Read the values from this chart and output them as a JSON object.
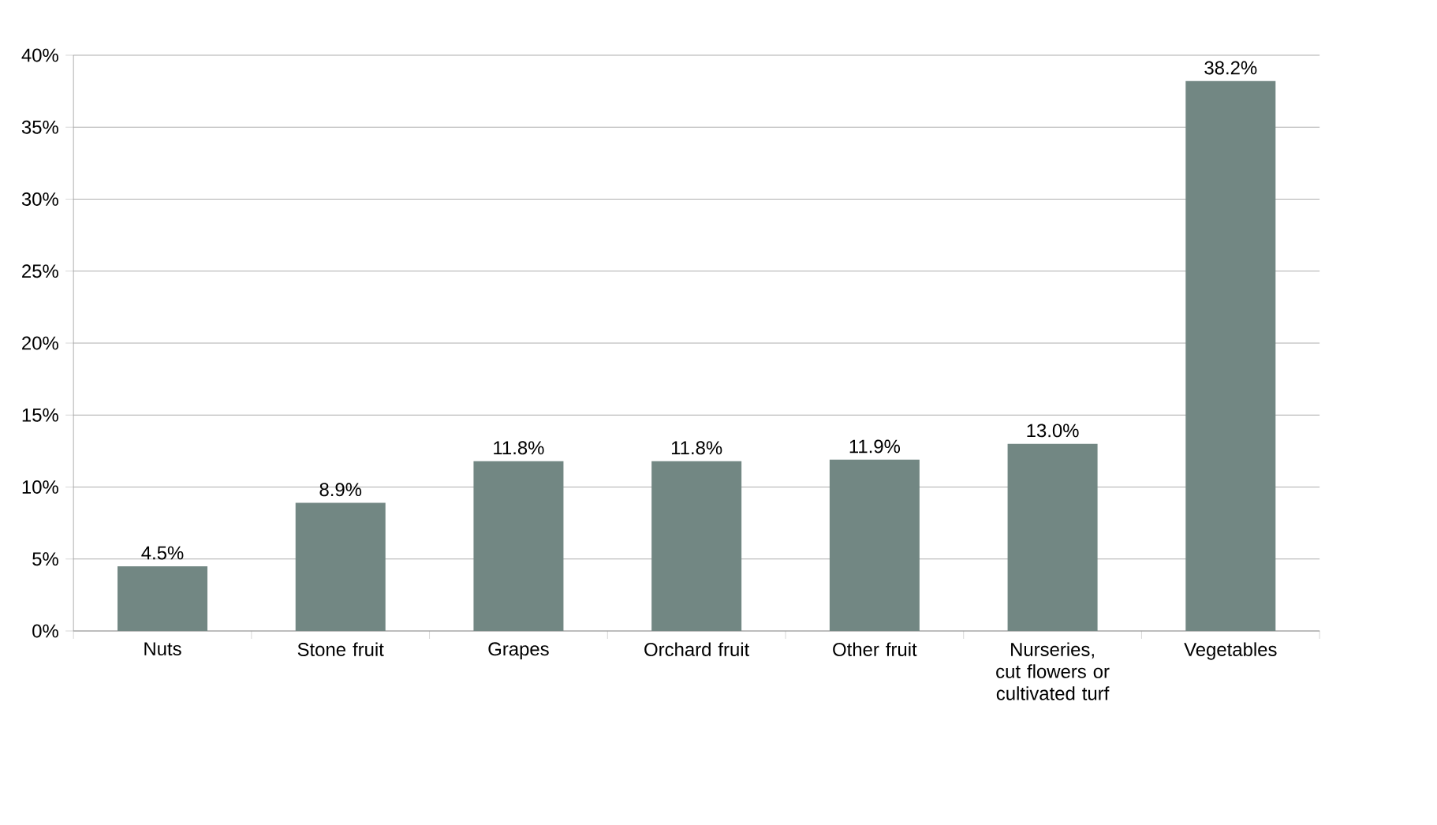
{
  "chart_data": {
    "type": "bar",
    "categories": [
      "Nuts",
      "Stone fruit",
      "Grapes",
      "Orchard fruit",
      "Other fruit",
      "Nurseries, cut flowers or cultivated turf",
      "Vegetables"
    ],
    "values": [
      4.5,
      8.9,
      11.8,
      11.8,
      11.9,
      13.0,
      38.2
    ],
    "value_labels": [
      "4.5%",
      "8.9%",
      "11.8%",
      "11.8%",
      "11.9%",
      "13.0%",
      "38.2%"
    ],
    "color": "#728783",
    "ylim": [
      0,
      40
    ],
    "yticks": [
      {
        "value": 0,
        "label": "0%"
      },
      {
        "value": 5,
        "label": "5%"
      },
      {
        "value": 10,
        "label": "10%"
      },
      {
        "value": 15,
        "label": "15%"
      },
      {
        "value": 20,
        "label": "20%"
      },
      {
        "value": 25,
        "label": "25%"
      },
      {
        "value": 30,
        "label": "30%"
      },
      {
        "value": 35,
        "label": "35%"
      },
      {
        "value": 40,
        "label": "40%"
      }
    ],
    "grid": "y"
  }
}
